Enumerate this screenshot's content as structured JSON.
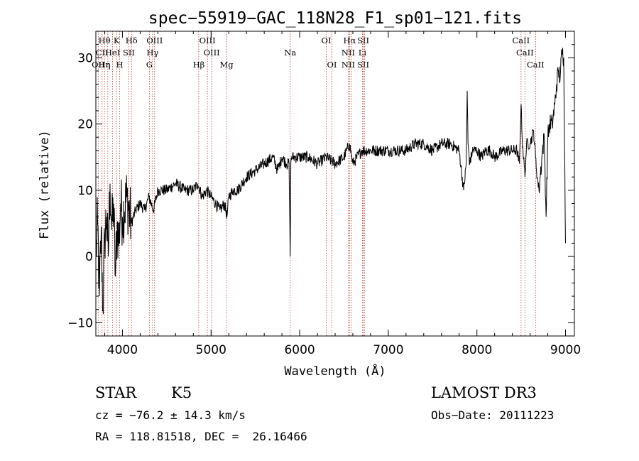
{
  "chart_data": {
    "type": "line",
    "title": "spec−55919−GAC_118N28_F1_sp01−121.fits",
    "xlabel": "Wavelength (Å)",
    "ylabel": "Flux (relative)",
    "xlim": [
      3700,
      9100
    ],
    "ylim": [
      -12,
      34
    ],
    "xticks": [
      4000,
      5000,
      6000,
      7000,
      8000,
      9000
    ],
    "yticks": [
      -10,
      0,
      10,
      20,
      30
    ],
    "xtick_labels": [
      "4000",
      "5000",
      "6000",
      "7000",
      "8000",
      "9000"
    ],
    "ytick_labels": [
      "−10",
      "0",
      "10",
      "20",
      "30"
    ],
    "grid": false,
    "series": [
      {
        "x": [
          3700,
          3720,
          3740,
          3760,
          3780,
          3800,
          3820,
          3840,
          3860,
          3880,
          3900,
          3920,
          3940,
          3960,
          3980,
          4000,
          4050,
          4100,
          4150,
          4200,
          4250,
          4300,
          4350,
          4400,
          4500,
          4600,
          4700,
          4800,
          4850,
          4900,
          4950,
          5000,
          5050,
          5100,
          5150,
          5180,
          5200,
          5250,
          5300,
          5400,
          5500,
          5600,
          5700,
          5750,
          5800,
          5850,
          5880,
          5893,
          5900,
          5910,
          5950,
          6000,
          6100,
          6200,
          6300,
          6400,
          6500,
          6563,
          6600,
          6700,
          6800,
          6900,
          7000,
          7100,
          7200,
          7300,
          7400,
          7500,
          7600,
          7700,
          7800,
          7850,
          7880,
          7890,
          7900,
          7920,
          7950,
          8000,
          8050,
          8100,
          8150,
          8200,
          8300,
          8400,
          8450,
          8480,
          8498,
          8510,
          8542,
          8560,
          8600,
          8640,
          8662,
          8680,
          8700,
          8740,
          8760,
          8780,
          8800,
          8820,
          8850,
          8880,
          8900,
          8920,
          8940,
          8960,
          8980,
          9000
        ],
        "y": [
          0,
          5,
          -6,
          4,
          -8,
          3,
          6,
          0,
          11,
          4,
          8,
          -3,
          5,
          2,
          8,
          6,
          9,
          5,
          7,
          8,
          7,
          9,
          7,
          10,
          10,
          11,
          10,
          10,
          11,
          9,
          10,
          9,
          8,
          7,
          8,
          6,
          9,
          10,
          10,
          12,
          13,
          14,
          15,
          13,
          15,
          14,
          14,
          0,
          14,
          15,
          15,
          15,
          15,
          14,
          15,
          14,
          15,
          17,
          14,
          16,
          16,
          16,
          16,
          16,
          16,
          17,
          17,
          16,
          17,
          17,
          16,
          10,
          14,
          25,
          17,
          14,
          16,
          16,
          15,
          16,
          16,
          15,
          16,
          16,
          16,
          14,
          23,
          18,
          12,
          17,
          17,
          19,
          15,
          12,
          10,
          16,
          18,
          6,
          18,
          20,
          20,
          23,
          26,
          28,
          27,
          31,
          30,
          2
        ]
      }
    ],
    "line_ids": [
      {
        "wave": 3727,
        "rows": [
          "",
          "",
          "OII"
        ]
      },
      {
        "wave": 3770,
        "rows": [
          "",
          "CII",
          ""
        ]
      },
      {
        "wave": 3797,
        "rows": [
          "Hθ",
          "",
          "Hη"
        ]
      },
      {
        "wave": 3835,
        "rows": [
          "",
          "",
          "η"
        ]
      },
      {
        "wave": 3889,
        "rows": [
          "",
          "HeI",
          ""
        ]
      },
      {
        "wave": 3934,
        "rows": [
          "K",
          "",
          ""
        ]
      },
      {
        "wave": 3969,
        "rows": [
          "",
          "",
          "H"
        ]
      },
      {
        "wave": 4072,
        "rows": [
          "",
          "SII",
          ""
        ]
      },
      {
        "wave": 4102,
        "rows": [
          "Hδ",
          "",
          ""
        ]
      },
      {
        "wave": 4304,
        "rows": [
          "",
          "",
          "G"
        ]
      },
      {
        "wave": 4340,
        "rows": [
          "",
          "Hγ",
          ""
        ]
      },
      {
        "wave": 4363,
        "rows": [
          "OIII",
          "",
          ""
        ]
      },
      {
        "wave": 4861,
        "rows": [
          "",
          "",
          "Hβ"
        ]
      },
      {
        "wave": 4959,
        "rows": [
          "OIII",
          "",
          ""
        ]
      },
      {
        "wave": 5007,
        "rows": [
          "",
          "OIII",
          ""
        ]
      },
      {
        "wave": 5175,
        "rows": [
          "",
          "",
          "Mg"
        ]
      },
      {
        "wave": 5893,
        "rows": [
          "",
          "Na",
          ""
        ]
      },
      {
        "wave": 6300,
        "rows": [
          "OI",
          "",
          ""
        ]
      },
      {
        "wave": 6364,
        "rows": [
          "",
          "",
          "OI"
        ]
      },
      {
        "wave": 6548,
        "rows": [
          "",
          "NII",
          "NII"
        ]
      },
      {
        "wave": 6563,
        "rows": [
          "Hα",
          "",
          ""
        ]
      },
      {
        "wave": 6583,
        "rows": [
          "",
          "",
          ""
        ]
      },
      {
        "wave": 6708,
        "rows": [
          "",
          "Li",
          ""
        ]
      },
      {
        "wave": 6717,
        "rows": [
          "SII",
          "",
          "SII"
        ]
      },
      {
        "wave": 6731,
        "rows": [
          "",
          "",
          ""
        ]
      },
      {
        "wave": 8498,
        "rows": [
          "CaII",
          "",
          ""
        ]
      },
      {
        "wave": 8542,
        "rows": [
          "",
          "CaII",
          ""
        ]
      },
      {
        "wave": 8662,
        "rows": [
          "",
          "",
          "CaII"
        ]
      }
    ]
  },
  "info": {
    "object_class": "STAR",
    "subclass": "K5",
    "survey": "LAMOST DR3",
    "cz": "cz = −76.2 ± 14.3 km/s",
    "obs_date": "Obs−Date: 20111223",
    "radec": "RA = 118.81518, DEC =  26.16466"
  }
}
